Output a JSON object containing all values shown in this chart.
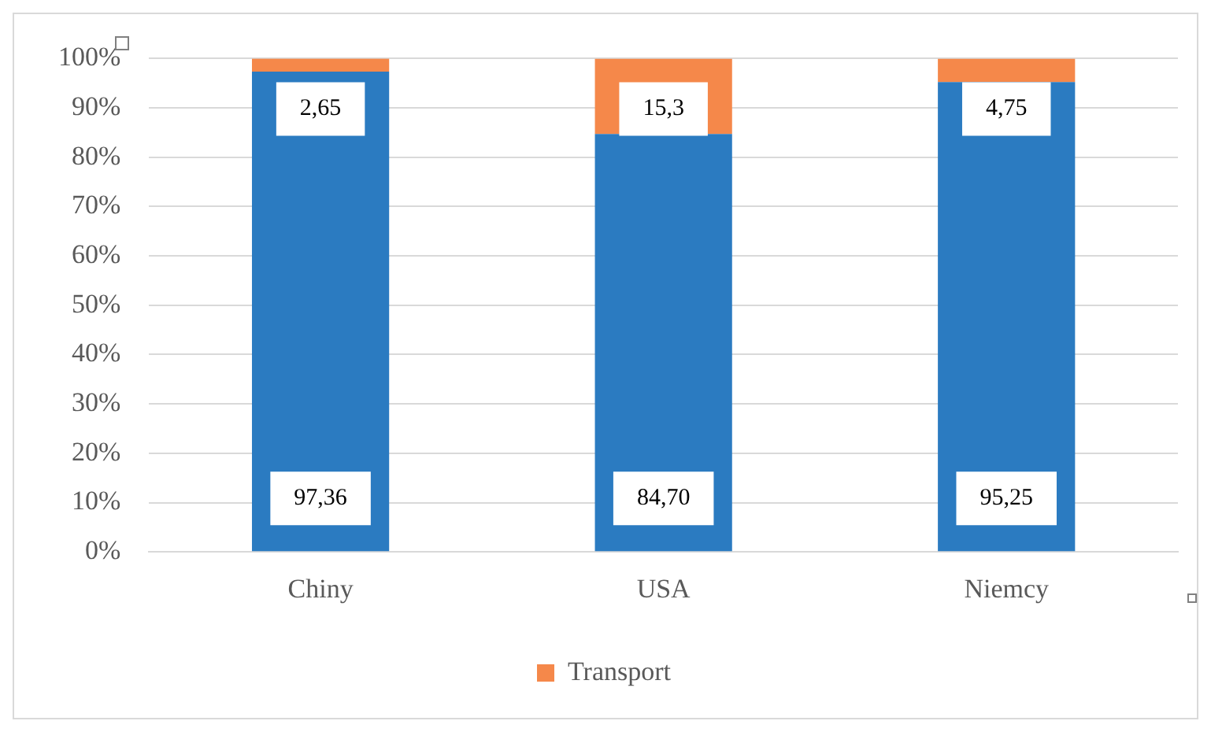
{
  "chart_data": {
    "type": "bar",
    "stacked": true,
    "categories": [
      "Chiny",
      "USA",
      "Niemcy"
    ],
    "series": [
      {
        "color": "#2b7bc1",
        "values": [
          97.36,
          84.7,
          95.25
        ],
        "value_labels": [
          "97,36",
          "84,70",
          "95,25"
        ]
      },
      {
        "name": "Transport",
        "color": "#f5884a",
        "values": [
          2.65,
          15.3,
          4.75
        ],
        "value_labels": [
          "2,65",
          "15,3",
          "4,75"
        ]
      }
    ],
    "ylim": [
      0,
      100
    ],
    "yticks": [
      {
        "value": 0,
        "label": "0%"
      },
      {
        "value": 10,
        "label": "10%"
      },
      {
        "value": 20,
        "label": "20%"
      },
      {
        "value": 30,
        "label": "30%"
      },
      {
        "value": 40,
        "label": "40%"
      },
      {
        "value": 50,
        "label": "50%"
      },
      {
        "value": 60,
        "label": "60%"
      },
      {
        "value": 70,
        "label": "70%"
      },
      {
        "value": 80,
        "label": "80%"
      },
      {
        "value": 90,
        "label": "90%"
      },
      {
        "value": 100,
        "label": "100%"
      }
    ],
    "grid": "y",
    "legend": "bottom"
  }
}
